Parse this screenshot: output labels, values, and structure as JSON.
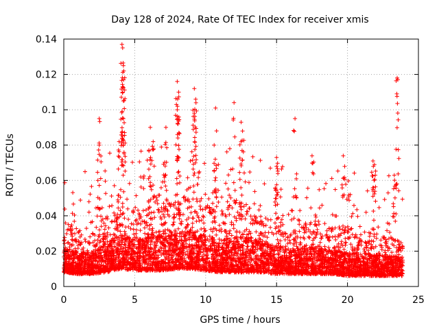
{
  "chart_data": {
    "type": "scatter",
    "title": "Day 128 of 2024, Rate Of TEC Index for receiver xmis",
    "xlabel": "GPS time / hours",
    "ylabel": "ROTI / TECUs",
    "xlim": [
      0,
      25
    ],
    "ylim": [
      0,
      0.14
    ],
    "xticks": [
      0,
      5,
      10,
      15,
      20,
      25
    ],
    "yticks": [
      0,
      0.02,
      0.04,
      0.06,
      0.08,
      0.1,
      0.12,
      0.14
    ],
    "xtick_labels": [
      "0",
      "5",
      "10",
      "15",
      "20",
      "25"
    ],
    "ytick_labels": [
      "0",
      "0.02",
      "0.04",
      "0.06",
      "0.08",
      "0.1",
      "0.12",
      "0.14"
    ],
    "grid": true,
    "marker": "+",
    "color": "#ff0000",
    "series": [
      {
        "name": "ROTI",
        "baseline_profile": {
          "x": [
            0,
            1,
            2,
            3,
            4,
            5,
            6,
            7,
            8,
            9,
            10,
            11,
            12,
            13,
            14,
            15,
            16,
            17,
            18,
            19,
            20,
            21,
            22,
            23,
            24
          ],
          "low": [
            0.008,
            0.007,
            0.007,
            0.008,
            0.01,
            0.009,
            0.009,
            0.009,
            0.01,
            0.01,
            0.009,
            0.008,
            0.008,
            0.008,
            0.008,
            0.007,
            0.007,
            0.007,
            0.007,
            0.007,
            0.006,
            0.006,
            0.006,
            0.006,
            0.006
          ],
          "high": [
            0.035,
            0.03,
            0.03,
            0.04,
            0.045,
            0.042,
            0.045,
            0.045,
            0.048,
            0.05,
            0.045,
            0.042,
            0.045,
            0.045,
            0.04,
            0.035,
            0.032,
            0.035,
            0.035,
            0.032,
            0.03,
            0.03,
            0.028,
            0.028,
            0.025
          ]
        },
        "notable_points": [
          {
            "x": 4.1,
            "y": 0.137
          },
          {
            "x": 4.15,
            "y": 0.135
          },
          {
            "x": 4.2,
            "y": 0.125
          },
          {
            "x": 4.15,
            "y": 0.113
          },
          {
            "x": 4.2,
            "y": 0.105
          },
          {
            "x": 4.2,
            "y": 0.095
          },
          {
            "x": 8.0,
            "y": 0.116
          },
          {
            "x": 8.1,
            "y": 0.11
          },
          {
            "x": 8.0,
            "y": 0.1
          },
          {
            "x": 9.2,
            "y": 0.112
          },
          {
            "x": 9.3,
            "y": 0.106
          },
          {
            "x": 9.2,
            "y": 0.098
          },
          {
            "x": 10.7,
            "y": 0.101
          },
          {
            "x": 12.0,
            "y": 0.104
          },
          {
            "x": 12.5,
            "y": 0.093
          },
          {
            "x": 12.6,
            "y": 0.088
          },
          {
            "x": 12.5,
            "y": 0.082
          },
          {
            "x": 6.1,
            "y": 0.09
          },
          {
            "x": 6.3,
            "y": 0.082
          },
          {
            "x": 2.5,
            "y": 0.095
          },
          {
            "x": 2.5,
            "y": 0.08
          },
          {
            "x": 16.3,
            "y": 0.095
          },
          {
            "x": 23.5,
            "y": 0.118
          },
          {
            "x": 23.55,
            "y": 0.117
          },
          {
            "x": 21.8,
            "y": 0.071
          },
          {
            "x": 21.9,
            "y": 0.069
          },
          {
            "x": 17.5,
            "y": 0.074
          },
          {
            "x": 19.7,
            "y": 0.074
          },
          {
            "x": 19.8,
            "y": 0.068
          },
          {
            "x": 15.0,
            "y": 0.073
          },
          {
            "x": 15.0,
            "y": 0.068
          },
          {
            "x": 11.7,
            "y": 0.078
          },
          {
            "x": 10.6,
            "y": 0.08
          },
          {
            "x": 7.2,
            "y": 0.09
          },
          {
            "x": 23.3,
            "y": 0.063
          },
          {
            "x": 20.2,
            "y": 0.052
          },
          {
            "x": 3.9,
            "y": 0.082
          }
        ]
      }
    ]
  }
}
